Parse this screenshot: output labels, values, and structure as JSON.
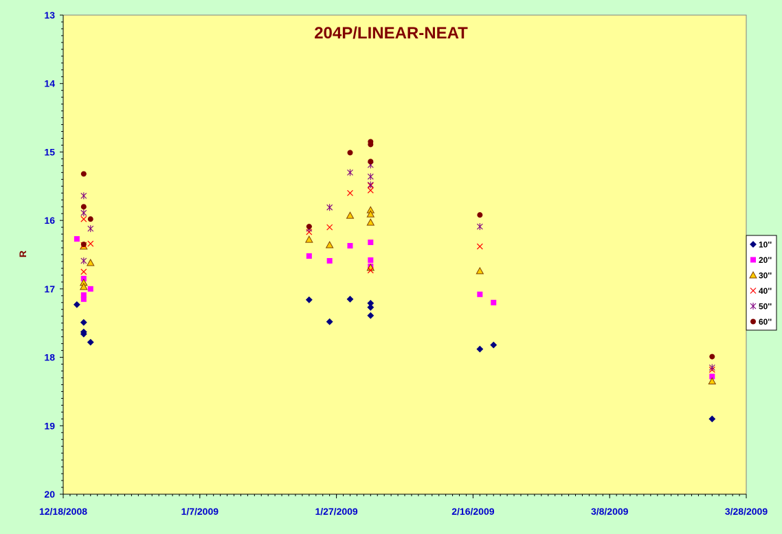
{
  "chart_data": {
    "type": "scatter",
    "title": "204P/LINEAR-NEAT",
    "xlabel": "",
    "ylabel": "R",
    "x_axis": {
      "type": "date",
      "min": "2008-12-18",
      "max": "2009-03-28",
      "ticks": [
        "2008-12-18",
        "2009-01-07",
        "2009-01-27",
        "2009-02-16",
        "2009-03-08",
        "2009-03-28"
      ],
      "tick_labels": [
        "12/18/2008",
        "1/7/2009",
        "1/27/2009",
        "2/16/2009",
        "3/8/2009",
        "3/28/2009"
      ]
    },
    "y_axis": {
      "min": 13,
      "max": 20,
      "reversed": true,
      "ticks": [
        13,
        14,
        15,
        16,
        17,
        18,
        19,
        20
      ],
      "tick_labels": [
        "13",
        "14",
        "15",
        "16",
        "17",
        "18",
        "19",
        "20"
      ]
    },
    "grid": false,
    "legend_position": "right",
    "series": [
      {
        "name": "10''",
        "marker": "diamond",
        "color": "#000080",
        "points": [
          [
            "2008-12-20",
            17.23
          ],
          [
            "2008-12-21",
            17.49
          ],
          [
            "2008-12-21",
            17.63
          ],
          [
            "2008-12-21",
            17.66
          ],
          [
            "2008-12-22",
            17.78
          ],
          [
            "2009-01-23",
            17.16
          ],
          [
            "2009-01-26",
            17.48
          ],
          [
            "2009-01-29",
            17.15
          ],
          [
            "2009-02-01",
            17.21
          ],
          [
            "2009-02-01",
            17.27
          ],
          [
            "2009-02-01",
            17.39
          ],
          [
            "2009-02-17",
            17.88
          ],
          [
            "2009-02-19",
            17.82
          ],
          [
            "2009-03-23",
            18.9
          ]
        ]
      },
      {
        "name": "20''",
        "marker": "square",
        "color": "#ff00ff",
        "points": [
          [
            "2008-12-20",
            16.27
          ],
          [
            "2008-12-21",
            16.85
          ],
          [
            "2008-12-21",
            17.09
          ],
          [
            "2008-12-21",
            17.15
          ],
          [
            "2008-12-22",
            17.0
          ],
          [
            "2009-01-23",
            16.52
          ],
          [
            "2009-01-26",
            16.59
          ],
          [
            "2009-01-29",
            16.37
          ],
          [
            "2009-02-01",
            16.32
          ],
          [
            "2009-02-01",
            16.58
          ],
          [
            "2009-02-01",
            16.67
          ],
          [
            "2009-02-17",
            17.08
          ],
          [
            "2009-02-19",
            17.2
          ],
          [
            "2009-03-23",
            18.28
          ]
        ]
      },
      {
        "name": "30''",
        "marker": "triangle",
        "color": "#ffcc00",
        "points": [
          [
            "2008-12-21",
            16.38
          ],
          [
            "2008-12-21",
            16.91
          ],
          [
            "2008-12-21",
            16.97
          ],
          [
            "2008-12-22",
            16.62
          ],
          [
            "2009-01-23",
            16.28
          ],
          [
            "2009-01-26",
            16.36
          ],
          [
            "2009-01-29",
            15.93
          ],
          [
            "2009-02-01",
            15.85
          ],
          [
            "2009-02-01",
            15.91
          ],
          [
            "2009-02-01",
            16.03
          ],
          [
            "2009-02-01",
            16.69
          ],
          [
            "2009-02-17",
            16.74
          ],
          [
            "2009-03-23",
            18.35
          ]
        ]
      },
      {
        "name": "40''",
        "marker": "x",
        "color": "#ff0000",
        "points": [
          [
            "2008-12-21",
            15.98
          ],
          [
            "2008-12-21",
            16.36
          ],
          [
            "2008-12-21",
            16.75
          ],
          [
            "2008-12-22",
            16.34
          ],
          [
            "2009-01-23",
            16.17
          ],
          [
            "2009-01-26",
            16.1
          ],
          [
            "2009-01-29",
            15.6
          ],
          [
            "2009-02-01",
            15.49
          ],
          [
            "2009-02-01",
            15.56
          ],
          [
            "2009-02-01",
            16.73
          ],
          [
            "2009-02-17",
            16.38
          ],
          [
            "2009-03-23",
            18.18
          ]
        ]
      },
      {
        "name": "50''",
        "marker": "star",
        "color": "#800080",
        "points": [
          [
            "2008-12-21",
            15.64
          ],
          [
            "2008-12-21",
            15.89
          ],
          [
            "2008-12-21",
            16.59
          ],
          [
            "2008-12-22",
            16.12
          ],
          [
            "2009-01-23",
            16.12
          ],
          [
            "2009-01-26",
            15.81
          ],
          [
            "2009-01-29",
            15.3
          ],
          [
            "2009-02-01",
            15.19
          ],
          [
            "2009-02-01",
            15.36
          ],
          [
            "2009-02-01",
            15.48
          ],
          [
            "2009-02-17",
            16.09
          ],
          [
            "2009-03-23",
            18.15
          ]
        ]
      },
      {
        "name": "60''",
        "marker": "circle",
        "color": "#800000",
        "points": [
          [
            "2008-12-21",
            15.32
          ],
          [
            "2008-12-21",
            15.8
          ],
          [
            "2008-12-21",
            16.35
          ],
          [
            "2008-12-22",
            15.98
          ],
          [
            "2009-01-23",
            16.09
          ],
          [
            "2009-01-29",
            15.01
          ],
          [
            "2009-02-01",
            14.85
          ],
          [
            "2009-02-01",
            14.89
          ],
          [
            "2009-02-01",
            15.14
          ],
          [
            "2009-02-17",
            15.92
          ],
          [
            "2009-03-23",
            17.99
          ]
        ]
      }
    ]
  },
  "colors": {
    "page_background": "#ccffcc",
    "plot_background": "#ffff99",
    "tick_labels": "#0000cc",
    "title": "#800000"
  }
}
